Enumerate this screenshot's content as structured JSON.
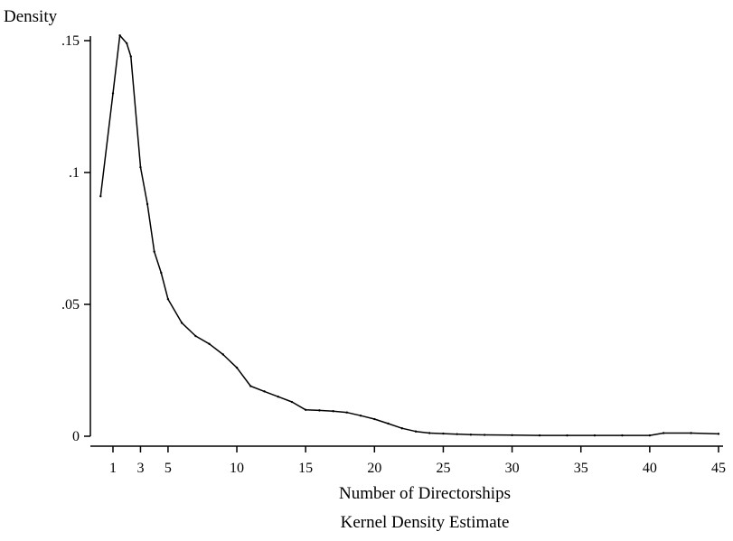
{
  "chart_data": {
    "type": "line",
    "ylabel": "Density",
    "xlabel": "Number of Directorships",
    "caption": "Kernel Density Estimate",
    "xlim": [
      0,
      45
    ],
    "ylim": [
      0,
      0.15
    ],
    "x_ticks": [
      1,
      3,
      5,
      10,
      15,
      20,
      25,
      30,
      35,
      40,
      45
    ],
    "x_tick_labels": [
      "1",
      "3",
      "5",
      "10",
      "15",
      "20",
      "25",
      "30",
      "35",
      "40",
      "45"
    ],
    "y_ticks": [
      0,
      0.05,
      0.1,
      0.15
    ],
    "y_tick_labels": [
      "0",
      ".05",
      ".1",
      ".15"
    ],
    "grid": false,
    "line_color": "#000000",
    "series": [
      {
        "x": [
          0.1,
          1.0,
          1.5,
          2.0,
          2.3,
          3.0,
          3.5,
          4.0,
          4.5,
          5.0,
          6.0,
          7.0,
          8.0,
          9.0,
          10.0,
          11.0,
          12.0,
          13.0,
          14.0,
          15.0,
          16.0,
          17.0,
          18.0,
          19.0,
          20.0,
          21.0,
          22.0,
          23.0,
          24.0,
          25.0,
          26.0,
          27.0,
          28.0,
          30.0,
          32.0,
          34.0,
          36.0,
          38.0,
          40.0,
          41.0,
          43.0,
          45.0
        ],
        "y": [
          0.091,
          0.13,
          0.152,
          0.149,
          0.144,
          0.102,
          0.088,
          0.07,
          0.062,
          0.052,
          0.043,
          0.038,
          0.035,
          0.031,
          0.026,
          0.019,
          0.017,
          0.015,
          0.013,
          0.01,
          0.0098,
          0.0095,
          0.009,
          0.0078,
          0.0065,
          0.0048,
          0.003,
          0.0018,
          0.0012,
          0.001,
          0.0008,
          0.0006,
          0.0005,
          0.0004,
          0.0003,
          0.0003,
          0.0003,
          0.0003,
          0.0003,
          0.0012,
          0.0012,
          0.0009
        ]
      }
    ]
  }
}
